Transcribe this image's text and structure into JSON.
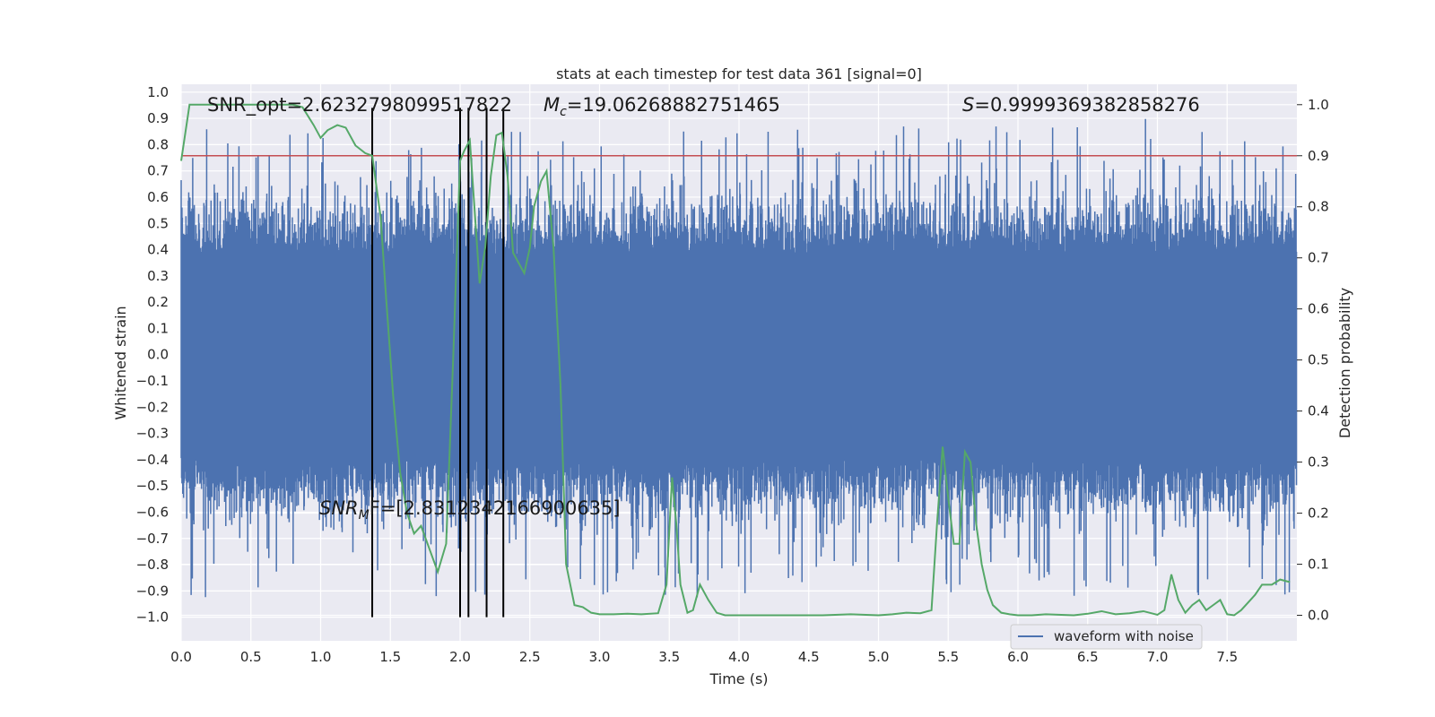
{
  "chart_data": {
    "type": "line",
    "title": "stats at each timestep for test data 361 [signal=0]",
    "xlabel": "Time (s)",
    "ylabel_left": "Whitened strain",
    "ylabel_right": "Detection probability",
    "xlim": [
      0.0,
      8.0
    ],
    "ylim_left": [
      -1.09,
      1.03
    ],
    "ylim_right": [
      -0.05,
      1.04
    ],
    "x_ticks": [
      "0.0",
      "0.5",
      "1.0",
      "1.5",
      "2.0",
      "2.5",
      "3.0",
      "3.5",
      "4.0",
      "4.5",
      "5.0",
      "5.5",
      "6.0",
      "6.5",
      "7.0",
      "7.5"
    ],
    "y_ticks_left": [
      "1.0",
      "0.9",
      "0.8",
      "0.7",
      "0.6",
      "0.5",
      "0.4",
      "0.3",
      "0.2",
      "0.1",
      "0.0",
      "-0.1",
      "-0.2",
      "-0.3",
      "-0.4",
      "-0.5",
      "-0.6",
      "-0.7",
      "-0.8",
      "-0.9",
      "-1.0"
    ],
    "y_ticks_right": [
      "1.0",
      "0.9",
      "0.8",
      "0.7",
      "0.6",
      "0.5",
      "0.4",
      "0.3",
      "0.2",
      "0.1",
      "0.0"
    ],
    "threshold": 0.9,
    "vertical_markers": [
      1.37,
      2.0,
      2.06,
      2.19,
      2.31
    ],
    "annotations": {
      "snr_opt": "SNR_opt=2.6232798099517822",
      "mc_symbol": "M",
      "mc_sub": "c",
      "mc_value": "=19.06268882751465",
      "s_symbol": "S",
      "s_value": "=0.9999369382858276",
      "snr_mf_symbol": "SNR",
      "snr_mf_sub": "M",
      "snr_mf_value": "F=[2.8312342166900635]"
    },
    "legend": {
      "label": "waveform with noise",
      "placement": "lower-right"
    },
    "series": [
      {
        "name": "waveform with noise",
        "axis": "left",
        "color": "#4c72b0",
        "description": "dense whitened strain noise, amplitude ~0.35 typical, peaks near ±0.9"
      },
      {
        "name": "detection probability",
        "axis": "right",
        "color": "#55a868",
        "x": [
          0.0,
          0.06,
          0.12,
          0.2,
          0.3,
          0.4,
          0.5,
          0.6,
          0.7,
          0.8,
          0.87,
          0.95,
          1.0,
          1.05,
          1.12,
          1.18,
          1.25,
          1.32,
          1.37,
          1.43,
          1.47,
          1.52,
          1.57,
          1.62,
          1.67,
          1.72,
          1.78,
          1.84,
          1.9,
          1.95,
          2.0,
          2.03,
          2.07,
          2.1,
          2.14,
          2.18,
          2.22,
          2.26,
          2.3,
          2.34,
          2.38,
          2.42,
          2.46,
          2.5,
          2.53,
          2.58,
          2.62,
          2.67,
          2.72,
          2.76,
          2.82,
          2.88,
          2.94,
          3.0,
          3.1,
          3.2,
          3.3,
          3.42,
          3.48,
          3.52,
          3.55,
          3.58,
          3.63,
          3.67,
          3.72,
          3.78,
          3.84,
          3.9,
          4.0,
          4.2,
          4.4,
          4.6,
          4.8,
          5.0,
          5.1,
          5.2,
          5.3,
          5.38,
          5.42,
          5.46,
          5.5,
          5.54,
          5.58,
          5.62,
          5.66,
          5.7,
          5.74,
          5.78,
          5.82,
          5.88,
          5.94,
          6.0,
          6.1,
          6.2,
          6.4,
          6.5,
          6.6,
          6.7,
          6.8,
          6.9,
          7.0,
          7.05,
          7.1,
          7.15,
          7.2,
          7.25,
          7.3,
          7.35,
          7.4,
          7.45,
          7.5,
          7.55,
          7.6,
          7.65,
          7.7,
          7.75,
          7.82,
          7.88,
          7.95
        ],
        "y": [
          0.89,
          1.0,
          1.0,
          1.0,
          1.0,
          1.0,
          1.0,
          1.0,
          1.0,
          1.0,
          0.995,
          0.96,
          0.935,
          0.95,
          0.96,
          0.955,
          0.92,
          0.905,
          0.9,
          0.78,
          0.62,
          0.43,
          0.28,
          0.2,
          0.16,
          0.175,
          0.13,
          0.085,
          0.14,
          0.5,
          0.89,
          0.91,
          0.93,
          0.81,
          0.65,
          0.72,
          0.86,
          0.94,
          0.945,
          0.86,
          0.71,
          0.69,
          0.67,
          0.72,
          0.8,
          0.85,
          0.87,
          0.72,
          0.45,
          0.1,
          0.02,
          0.016,
          0.005,
          0.002,
          0.002,
          0.003,
          0.002,
          0.004,
          0.06,
          0.27,
          0.18,
          0.06,
          0.005,
          0.01,
          0.06,
          0.03,
          0.005,
          0.0,
          0.0,
          0.0,
          0.0,
          0.0,
          0.002,
          0.0,
          0.002,
          0.005,
          0.004,
          0.01,
          0.18,
          0.33,
          0.23,
          0.14,
          0.14,
          0.32,
          0.3,
          0.18,
          0.1,
          0.05,
          0.02,
          0.005,
          0.002,
          0.0,
          0.0,
          0.002,
          0.0,
          0.003,
          0.008,
          0.002,
          0.004,
          0.008,
          0.001,
          0.01,
          0.08,
          0.03,
          0.005,
          0.02,
          0.03,
          0.01,
          0.02,
          0.03,
          0.002,
          0.0,
          0.01,
          0.025,
          0.04,
          0.06,
          0.06,
          0.07,
          0.065
        ]
      }
    ]
  }
}
